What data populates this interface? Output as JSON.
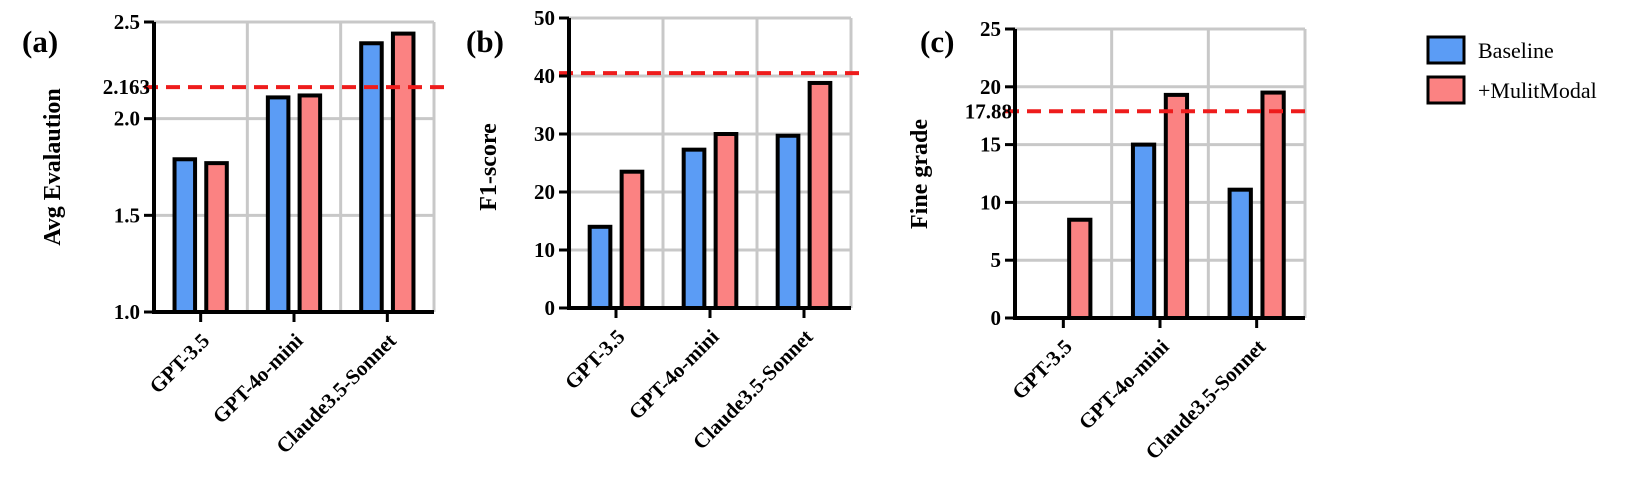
{
  "colors": {
    "baseline": "#5b9cf5",
    "multimodal": "#fb8282",
    "reference_line": "#ee1c1c",
    "grid": "#c8c8c8",
    "bar_edge": "#000000"
  },
  "legend": {
    "items": [
      {
        "label": "Baseline",
        "color_key": "baseline"
      },
      {
        "label": "+MulitModal",
        "color_key": "multimodal"
      }
    ],
    "placement": "right"
  },
  "chart_data": [
    {
      "type": "bar",
      "panel": "(a)",
      "ylabel": "Avg Evalaution",
      "categories": [
        "GPT-3.5",
        "GPT-4o-mini",
        "Claude3.5-Sonnet"
      ],
      "ylim": [
        1.0,
        2.5
      ],
      "yticks": [
        1.0,
        1.5,
        2.0,
        2.5
      ],
      "ytick_labels": [
        "1.0",
        "1.5",
        "2.0",
        "2.5"
      ],
      "grid": true,
      "series": [
        {
          "name": "Baseline",
          "values": [
            1.79,
            2.11,
            2.39
          ]
        },
        {
          "name": "+MulitModal",
          "values": [
            1.77,
            2.12,
            2.44
          ]
        }
      ],
      "reference_line": {
        "value": 2.163,
        "label": "2.163"
      }
    },
    {
      "type": "bar",
      "panel": "(b)",
      "ylabel": "F1-score",
      "categories": [
        "GPT-3.5",
        "GPT-4o-mini",
        "Claude3.5-Sonnet"
      ],
      "ylim": [
        0,
        50
      ],
      "yticks": [
        0,
        10,
        20,
        30,
        40,
        50
      ],
      "ytick_labels": [
        "0",
        "10",
        "20",
        "30",
        "40",
        "50"
      ],
      "grid": true,
      "series": [
        {
          "name": "Baseline",
          "values": [
            14.0,
            27.3,
            29.7
          ]
        },
        {
          "name": "+MulitModal",
          "values": [
            23.5,
            30.0,
            38.8
          ]
        }
      ],
      "reference_line": {
        "value": 40.5,
        "label": ""
      }
    },
    {
      "type": "bar",
      "panel": "(c)",
      "ylabel": "Fine grade",
      "categories": [
        "GPT-3.5",
        "GPT-4o-mini",
        "Claude3.5-Sonnet"
      ],
      "ylim": [
        0,
        25
      ],
      "yticks": [
        0,
        5,
        10,
        15,
        20,
        25
      ],
      "ytick_labels": [
        "0",
        "5",
        "10",
        "15",
        "20",
        "25"
      ],
      "grid": true,
      "series": [
        {
          "name": "Baseline",
          "values": [
            0,
            15.0,
            11.1
          ]
        },
        {
          "name": "+MulitModal",
          "values": [
            8.5,
            19.3,
            19.5
          ]
        }
      ],
      "reference_line": {
        "value": 17.88,
        "label": "17.88"
      }
    }
  ]
}
